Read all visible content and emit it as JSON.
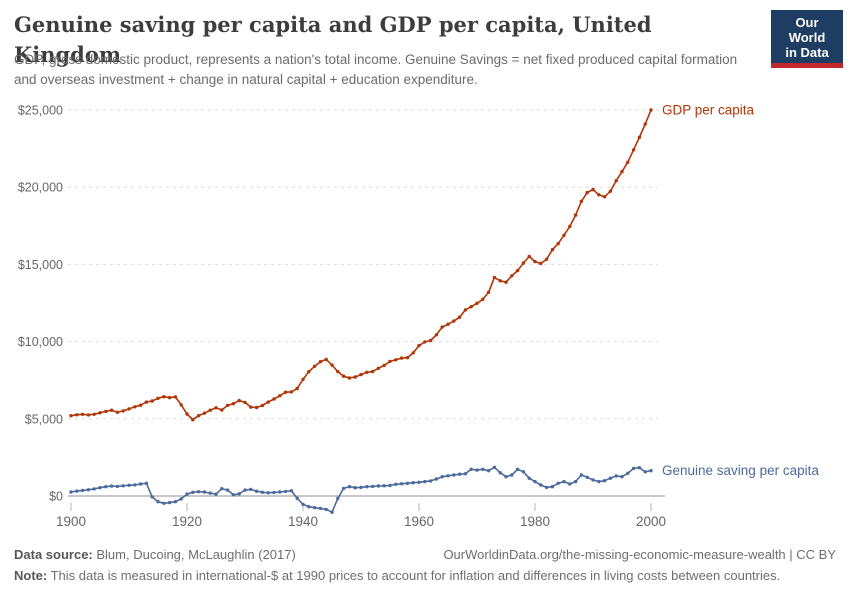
{
  "header": {
    "title": "Genuine saving per capita and GDP per capita, United Kingdom",
    "subtitle": "GDP, gross domestic product, represents a nation's total income. Genuine Savings = net fixed produced capital formation and overseas investment + change in natural capital + education expenditure.",
    "logo": {
      "line1": "Our World",
      "line2": "in Data",
      "bg_color": "#1d3d63",
      "accent_color": "#c0282d"
    }
  },
  "chart_data": {
    "type": "line",
    "title": "Genuine saving per capita and GDP per capita, United Kingdom",
    "xlabel": "",
    "ylabel": "",
    "unit": "international-$ at 1990 prices",
    "xlim": [
      1900,
      2000
    ],
    "ylim": [
      -1300,
      25000
    ],
    "grid": "horizontal-dashed",
    "legend": "line-end-labels",
    "x_ticks": [
      1900,
      1920,
      1940,
      1960,
      1980,
      2000
    ],
    "y_ticks": [
      0,
      5000,
      10000,
      15000,
      20000,
      25000
    ],
    "y_tick_labels": [
      "$0",
      "$5,000",
      "$10,000",
      "$15,000",
      "$20,000",
      "$25,000"
    ],
    "x": [
      1900,
      1901,
      1902,
      1903,
      1904,
      1905,
      1906,
      1907,
      1908,
      1909,
      1910,
      1911,
      1912,
      1913,
      1914,
      1915,
      1916,
      1917,
      1918,
      1919,
      1920,
      1921,
      1922,
      1923,
      1924,
      1925,
      1926,
      1927,
      1928,
      1929,
      1930,
      1931,
      1932,
      1933,
      1934,
      1935,
      1936,
      1937,
      1938,
      1939,
      1940,
      1941,
      1942,
      1943,
      1944,
      1945,
      1946,
      1947,
      1948,
      1949,
      1950,
      1951,
      1952,
      1953,
      1954,
      1955,
      1956,
      1957,
      1958,
      1959,
      1960,
      1961,
      1962,
      1963,
      1964,
      1965,
      1966,
      1967,
      1968,
      1969,
      1970,
      1971,
      1972,
      1973,
      1974,
      1975,
      1976,
      1977,
      1978,
      1979,
      1980,
      1981,
      1982,
      1983,
      1984,
      1985,
      1986,
      1987,
      1988,
      1989,
      1990,
      1991,
      1992,
      1993,
      1994,
      1995,
      1996,
      1997,
      1998,
      1999,
      2000
    ],
    "series": [
      {
        "name": "GDP per capita",
        "color": "#b13507",
        "values": [
          5200,
          5260,
          5290,
          5250,
          5290,
          5390,
          5480,
          5560,
          5420,
          5510,
          5640,
          5780,
          5880,
          6080,
          6150,
          6330,
          6430,
          6370,
          6420,
          5900,
          5310,
          4940,
          5200,
          5360,
          5560,
          5710,
          5570,
          5870,
          5980,
          6180,
          6060,
          5760,
          5730,
          5860,
          6080,
          6280,
          6490,
          6720,
          6740,
          6960,
          7550,
          8050,
          8400,
          8700,
          8850,
          8480,
          8060,
          7760,
          7640,
          7710,
          7860,
          8010,
          8060,
          8270,
          8460,
          8720,
          8820,
          8930,
          8960,
          9270,
          9740,
          9980,
          10070,
          10440,
          10940,
          11130,
          11330,
          11580,
          12050,
          12260,
          12480,
          12740,
          13190,
          14160,
          13940,
          13850,
          14260,
          14600,
          15090,
          15510,
          15180,
          15060,
          15340,
          15950,
          16350,
          16890,
          17460,
          18190,
          19090,
          19650,
          19850,
          19510,
          19380,
          19740,
          20420,
          21010,
          21620,
          22420,
          23230,
          24090,
          25000
        ]
      },
      {
        "name": "Genuine saving per capita",
        "color": "#4c6a9c",
        "values": [
          260,
          320,
          360,
          400,
          460,
          540,
          600,
          640,
          620,
          660,
          690,
          720,
          780,
          820,
          -60,
          -370,
          -470,
          -430,
          -370,
          -190,
          120,
          240,
          280,
          260,
          190,
          120,
          470,
          380,
          80,
          140,
          380,
          430,
          310,
          240,
          210,
          230,
          260,
          300,
          340,
          -150,
          -540,
          -690,
          -760,
          -800,
          -870,
          -1050,
          -160,
          490,
          600,
          540,
          560,
          600,
          620,
          650,
          660,
          680,
          760,
          790,
          820,
          860,
          890,
          930,
          980,
          1100,
          1250,
          1310,
          1360,
          1410,
          1440,
          1730,
          1680,
          1730,
          1640,
          1860,
          1510,
          1250,
          1360,
          1730,
          1570,
          1150,
          930,
          710,
          560,
          600,
          820,
          930,
          780,
          930,
          1360,
          1210,
          1040,
          930,
          990,
          1150,
          1300,
          1250,
          1470,
          1790,
          1830,
          1570,
          1640
        ]
      }
    ]
  },
  "footer": {
    "data_source_label": "Data source:",
    "data_source_value": "Blum, Ducoing, McLaughlin (2017)",
    "url_text": "OurWorldinData.org/the-missing-economic-measure-wealth | CC BY",
    "note_label": "Note:",
    "note_value": "This data is measured in international-$ at 1990 prices to account for inflation and differences in living costs between countries."
  }
}
